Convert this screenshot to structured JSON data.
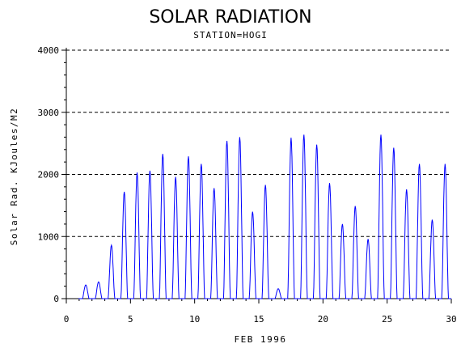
{
  "chart_data": {
    "type": "line",
    "title": "SOLAR RADIATION",
    "subtitle": "STATION=HOGI",
    "xlabel": "FEB 1996",
    "ylabel": "Solar Rad. KJoules/M2",
    "xlim": [
      0,
      30
    ],
    "ylim": [
      0,
      4000
    ],
    "x_ticks": [
      0,
      5,
      10,
      15,
      20,
      25,
      30
    ],
    "y_ticks": [
      0,
      1000,
      2000,
      3000,
      4000
    ],
    "x_tick_labels": [
      "0",
      "5",
      "10",
      "15",
      "20",
      "25",
      "30"
    ],
    "y_tick_labels": [
      "0",
      "1000",
      "2000",
      "3000",
      "4000"
    ],
    "gridlines": "horizontal dashed at 1000, 2000, 3000, 4000",
    "series": [
      {
        "color": "#0000ff",
        "daily_peaks": [
          {
            "day": 1,
            "peak": 220
          },
          {
            "day": 2,
            "peak": 270
          },
          {
            "day": 3,
            "peak": 860
          },
          {
            "day": 4,
            "peak": 1720
          },
          {
            "day": 5,
            "peak": 2030
          },
          {
            "day": 6,
            "peak": 2060
          },
          {
            "day": 7,
            "peak": 2330
          },
          {
            "day": 8,
            "peak": 1960
          },
          {
            "day": 9,
            "peak": 2290
          },
          {
            "day": 10,
            "peak": 2170
          },
          {
            "day": 11,
            "peak": 1780
          },
          {
            "day": 12,
            "peak": 2540
          },
          {
            "day": 13,
            "peak": 2600
          },
          {
            "day": 14,
            "peak": 1400
          },
          {
            "day": 15,
            "peak": 1830
          },
          {
            "day": 16,
            "peak": 160
          },
          {
            "day": 17,
            "peak": 2590
          },
          {
            "day": 18,
            "peak": 2640
          },
          {
            "day": 19,
            "peak": 2480
          },
          {
            "day": 20,
            "peak": 1860
          },
          {
            "day": 21,
            "peak": 1200
          },
          {
            "day": 22,
            "peak": 1490
          },
          {
            "day": 23,
            "peak": 960
          },
          {
            "day": 24,
            "peak": 2640
          },
          {
            "day": 25,
            "peak": 2430
          },
          {
            "day": 26,
            "peak": 1760
          },
          {
            "day": 27,
            "peak": 2170
          },
          {
            "day": 28,
            "peak": 1270
          },
          {
            "day": 29,
            "peak": 2170
          }
        ]
      }
    ]
  }
}
